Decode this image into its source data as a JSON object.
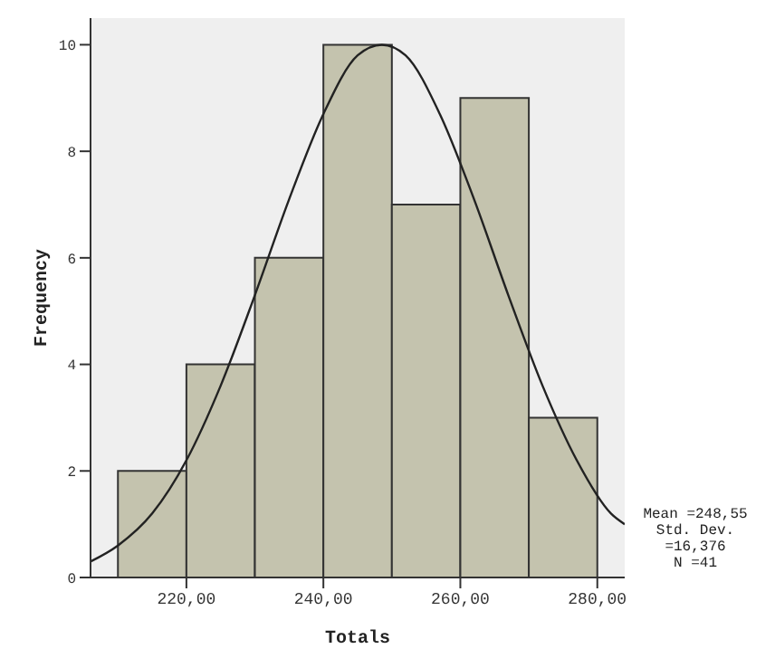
{
  "chart_data": {
    "type": "histogram",
    "xlabel": "Totals",
    "ylabel": "Frequency",
    "bins": [
      210,
      220,
      230,
      240,
      250,
      260,
      270,
      280
    ],
    "values": [
      2,
      4,
      6,
      10,
      7,
      9,
      3
    ],
    "color": "#c4c3ae",
    "series": [
      {
        "type": "line",
        "color": "#222222",
        "x": [
          206,
          210,
          215,
          220,
          225,
          230,
          235,
          240,
          245,
          248.55,
          252,
          257,
          262,
          267,
          272,
          277,
          282,
          284
        ],
        "values": [
          0.3,
          0.6,
          1.2,
          2.2,
          3.6,
          5.3,
          7.1,
          8.7,
          9.8,
          10.0,
          9.8,
          8.7,
          7.1,
          5.3,
          3.6,
          2.2,
          1.2,
          1.0
        ]
      }
    ],
    "xlim": [
      206,
      284
    ],
    "xticks": [
      {
        "value": 220,
        "label": "220,00"
      },
      {
        "value": 240,
        "label": "240,00"
      },
      {
        "value": 260,
        "label": "260,00"
      },
      {
        "value": 280,
        "label": "280,00"
      }
    ],
    "ylim": [
      0,
      10.5
    ],
    "yticks": [
      0,
      2,
      4,
      6,
      8,
      10
    ],
    "annotations": [
      "Mean =248,55",
      "Std. Dev. =16,376",
      "N =41"
    ]
  }
}
